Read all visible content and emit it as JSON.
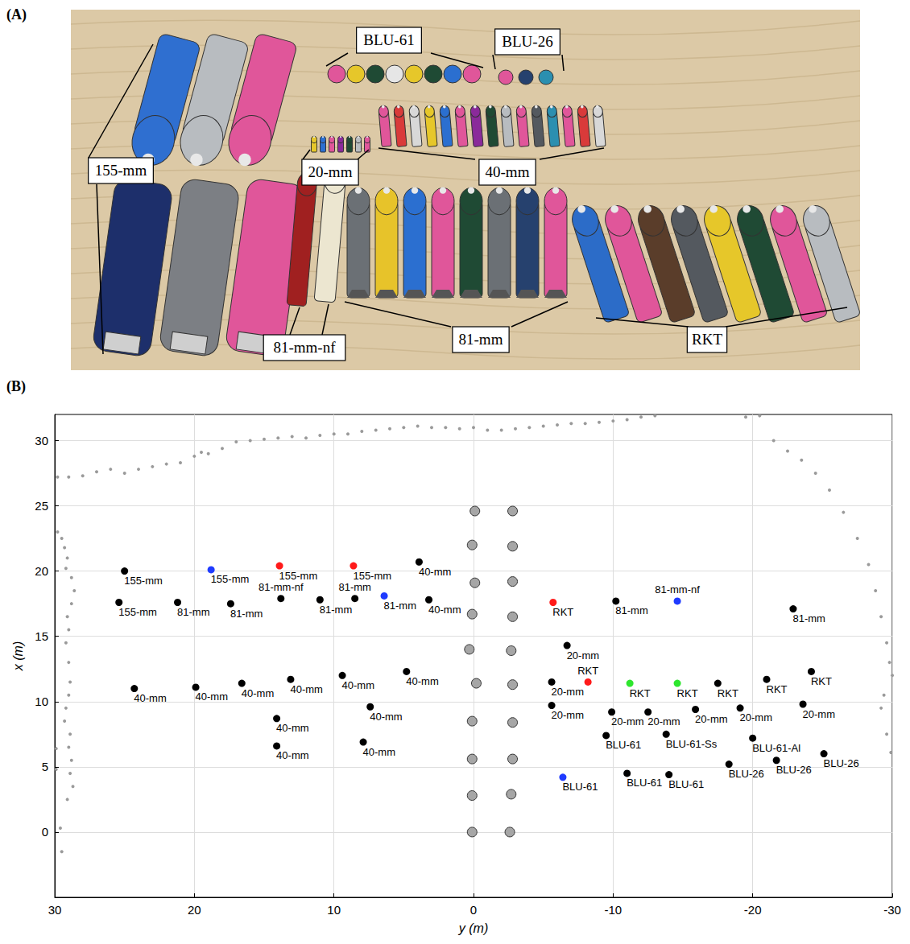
{
  "photo": {
    "panel_label": "(A)",
    "labels": [
      "155-mm",
      "BLU-61",
      "BLU-26",
      "20-mm",
      "40-mm",
      "81-mm-nf",
      "81-mm",
      "RKT"
    ]
  },
  "chart_data": {
    "type": "scatter",
    "panel_label": "(B)",
    "x_label": "y (m)",
    "y_label": "x (m)",
    "xlim": [
      30,
      -30
    ],
    "xticks": [
      30,
      20,
      10,
      0,
      -10,
      -20,
      -30
    ],
    "ylim": [
      -5,
      32
    ],
    "yticks": [
      0,
      5,
      10,
      15,
      20,
      25,
      30
    ],
    "grid": true,
    "series": [
      {
        "color": "#000000",
        "marker": "circle",
        "points": [
          {
            "x": 25,
            "y": 20,
            "label": "155-mm"
          },
          {
            "x": 3.9,
            "y": 20.7,
            "label": "40-mm"
          },
          {
            "x": 25.4,
            "y": 17.6,
            "label": "155-mm"
          },
          {
            "x": 21.2,
            "y": 17.6,
            "label": "81-mm"
          },
          {
            "x": 17.4,
            "y": 17.5,
            "label": "81-mm"
          },
          {
            "x": 13.8,
            "y": 17.9,
            "label": "81-mm-nf"
          },
          {
            "x": 11.0,
            "y": 17.8,
            "label": "81-mm"
          },
          {
            "x": 8.5,
            "y": 17.9,
            "label": "81-mm"
          },
          {
            "x": 3.2,
            "y": 17.8,
            "label": "40-mm"
          },
          {
            "x": -10.2,
            "y": 17.7,
            "label": "81-mm"
          },
          {
            "x": -22.9,
            "y": 17.1,
            "label": "81-mm"
          },
          {
            "x": -6.7,
            "y": 14.3,
            "label": "20-mm"
          },
          {
            "x": 24.3,
            "y": 11.0,
            "label": "40-mm"
          },
          {
            "x": 19.9,
            "y": 11.1,
            "label": "40-mm"
          },
          {
            "x": 16.6,
            "y": 11.4,
            "label": "40-mm"
          },
          {
            "x": 13.1,
            "y": 11.7,
            "label": "40-mm"
          },
          {
            "x": 9.4,
            "y": 12.0,
            "label": "40-mm"
          },
          {
            "x": 4.8,
            "y": 12.3,
            "label": "40-mm"
          },
          {
            "x": 14.1,
            "y": 8.7,
            "label": "40-mm"
          },
          {
            "x": 7.4,
            "y": 9.6,
            "label": "40-mm"
          },
          {
            "x": 14.1,
            "y": 6.6,
            "label": "40-mm"
          },
          {
            "x": 7.9,
            "y": 6.9,
            "label": "40-mm"
          },
          {
            "x": -5.6,
            "y": 11.5,
            "label": "20-mm"
          },
          {
            "x": -17.5,
            "y": 11.4,
            "label": "RKT"
          },
          {
            "x": -21.0,
            "y": 11.7,
            "label": "RKT"
          },
          {
            "x": -24.2,
            "y": 12.3,
            "label": "RKT"
          },
          {
            "x": -5.6,
            "y": 9.7,
            "label": "20-mm"
          },
          {
            "x": -9.9,
            "y": 9.2,
            "label": "20-mm"
          },
          {
            "x": -12.5,
            "y": 9.2,
            "label": "20-mm"
          },
          {
            "x": -15.9,
            "y": 9.4,
            "label": "20-mm"
          },
          {
            "x": -19.1,
            "y": 9.5,
            "label": "20-mm"
          },
          {
            "x": -23.6,
            "y": 9.8,
            "label": "20-mm"
          },
          {
            "x": -9.5,
            "y": 7.4,
            "label": "BLU-61"
          },
          {
            "x": -13.8,
            "y": 7.5,
            "label": "BLU-61-Ss"
          },
          {
            "x": -20.0,
            "y": 7.2,
            "label": "BLU-61-Al"
          },
          {
            "x": -18.3,
            "y": 5.2,
            "label": "BLU-26"
          },
          {
            "x": -21.7,
            "y": 5.5,
            "label": "BLU-26"
          },
          {
            "x": -25.1,
            "y": 6.0,
            "label": "BLU-26"
          },
          {
            "x": -11.0,
            "y": 4.5,
            "label": "BLU-61"
          },
          {
            "x": -14.0,
            "y": 4.4,
            "label": "BLU-61"
          }
        ]
      },
      {
        "color": "#1f3bff",
        "marker": "circle",
        "points": [
          {
            "x": 18.8,
            "y": 20.1,
            "label": "155-mm"
          },
          {
            "x": 6.4,
            "y": 18.1,
            "label": "81-mm"
          },
          {
            "x": -14.6,
            "y": 17.7,
            "label": "81-mm-nf"
          },
          {
            "x": -6.4,
            "y": 4.2,
            "label": "BLU-61"
          }
        ]
      },
      {
        "color": "#ff1a1a",
        "marker": "circle",
        "points": [
          {
            "x": 13.9,
            "y": 20.4,
            "label": "155-mm"
          },
          {
            "x": 8.6,
            "y": 20.4,
            "label": "155-mm"
          },
          {
            "x": -5.7,
            "y": 17.6,
            "label": "RKT"
          },
          {
            "x": -8.2,
            "y": 11.5,
            "label": "RKT"
          }
        ]
      },
      {
        "color": "#2ee62e",
        "marker": "circle",
        "points": [
          {
            "x": -11.2,
            "y": 11.4,
            "label": "RKT"
          },
          {
            "x": -14.6,
            "y": 11.4,
            "label": "RKT"
          }
        ]
      },
      {
        "color": "#a6a6a6",
        "marker": "circle-outline",
        "points": [
          {
            "x": 0.1,
            "y": 0
          },
          {
            "x": 0.1,
            "y": 2.8
          },
          {
            "x": 0.1,
            "y": 5.6
          },
          {
            "x": 0.1,
            "y": 8.5
          },
          {
            "x": -0.2,
            "y": 11.4
          },
          {
            "x": 0.3,
            "y": 14.0
          },
          {
            "x": 0.1,
            "y": 16.7
          },
          {
            "x": -0.1,
            "y": 19.1
          },
          {
            "x": 0.1,
            "y": 22.0
          },
          {
            "x": -0.1,
            "y": 24.6
          },
          {
            "x": -2.6,
            "y": 0
          },
          {
            "x": -2.7,
            "y": 2.9
          },
          {
            "x": -2.8,
            "y": 5.6
          },
          {
            "x": -2.8,
            "y": 8.4
          },
          {
            "x": -2.8,
            "y": 11.3
          },
          {
            "x": -2.7,
            "y": 13.9
          },
          {
            "x": -2.8,
            "y": 16.5
          },
          {
            "x": -2.8,
            "y": 19.2
          },
          {
            "x": -2.8,
            "y": 21.9
          },
          {
            "x": -2.8,
            "y": 24.6
          }
        ]
      },
      {
        "color": "#9a9a9a",
        "marker": "dot",
        "points": [
          {
            "x": 29.8,
            "y": 27.2
          },
          {
            "x": 29,
            "y": 27.2
          },
          {
            "x": 28,
            "y": 27.3
          },
          {
            "x": 27,
            "y": 27.6
          },
          {
            "x": 26,
            "y": 27.8
          },
          {
            "x": 25,
            "y": 27.5
          },
          {
            "x": 24,
            "y": 27.8
          },
          {
            "x": 23,
            "y": 28.0
          },
          {
            "x": 22,
            "y": 28.2
          },
          {
            "x": 21,
            "y": 28.3
          },
          {
            "x": 20,
            "y": 28.8
          },
          {
            "x": 19.5,
            "y": 29.1
          },
          {
            "x": 19,
            "y": 29.0
          },
          {
            "x": 18,
            "y": 29.4
          },
          {
            "x": 17,
            "y": 29.9
          },
          {
            "x": 16,
            "y": 30.0
          },
          {
            "x": 15,
            "y": 30.1
          },
          {
            "x": 14,
            "y": 30.2
          },
          {
            "x": 13,
            "y": 30.3
          },
          {
            "x": 12,
            "y": 30.2
          },
          {
            "x": 11,
            "y": 30.4
          },
          {
            "x": 10,
            "y": 30.5
          },
          {
            "x": 9,
            "y": 30.5
          },
          {
            "x": 8,
            "y": 30.7
          },
          {
            "x": 7,
            "y": 30.8
          },
          {
            "x": 6,
            "y": 30.9
          },
          {
            "x": 5,
            "y": 31.0
          },
          {
            "x": 4,
            "y": 31.1
          },
          {
            "x": 3,
            "y": 31.0
          },
          {
            "x": 2,
            "y": 31.0
          },
          {
            "x": 1,
            "y": 30.9
          },
          {
            "x": 0,
            "y": 31.0
          },
          {
            "x": -1,
            "y": 30.8
          },
          {
            "x": -2,
            "y": 30.8
          },
          {
            "x": -3,
            "y": 30.9
          },
          {
            "x": -4,
            "y": 31.0
          },
          {
            "x": -5,
            "y": 31.1
          },
          {
            "x": -6,
            "y": 31.2
          },
          {
            "x": -7,
            "y": 31.3
          },
          {
            "x": -8,
            "y": 31.3
          },
          {
            "x": -9,
            "y": 31.4
          },
          {
            "x": -10,
            "y": 31.5
          },
          {
            "x": -11,
            "y": 31.6
          },
          {
            "x": -12,
            "y": 31.8
          },
          {
            "x": -13,
            "y": 31.9
          },
          {
            "x": -19.5,
            "y": 31.8
          },
          {
            "x": -20.5,
            "y": 31.9
          },
          {
            "x": -21.5,
            "y": 30.0
          },
          {
            "x": -22.5,
            "y": 29.2
          },
          {
            "x": -23.5,
            "y": 28.5
          },
          {
            "x": -24.5,
            "y": 27.5
          },
          {
            "x": -25.5,
            "y": 26.2
          },
          {
            "x": -26.5,
            "y": 24.5
          },
          {
            "x": -27.5,
            "y": 22.5
          },
          {
            "x": -28.3,
            "y": 20.5
          },
          {
            "x": -28.8,
            "y": 18.5
          },
          {
            "x": -29.2,
            "y": 16.5
          },
          {
            "x": -29.6,
            "y": 14.5
          },
          {
            "x": -29.8,
            "y": 13.0
          },
          {
            "x": -30,
            "y": 12.0
          },
          {
            "x": -29.4,
            "y": 10.5
          },
          {
            "x": -29.2,
            "y": 9.5
          },
          {
            "x": -29.6,
            "y": 7.5
          },
          {
            "x": -29.9,
            "y": 6.1
          },
          {
            "x": 29.8,
            "y": 23.0
          },
          {
            "x": 29.5,
            "y": 22.5
          },
          {
            "x": 29.3,
            "y": 21.8
          },
          {
            "x": 29.1,
            "y": 21.0
          },
          {
            "x": 29.2,
            "y": 20.2
          },
          {
            "x": 28.8,
            "y": 19.5
          },
          {
            "x": 28.6,
            "y": 18.5
          },
          {
            "x": 28.8,
            "y": 17.5
          },
          {
            "x": 29.1,
            "y": 16.5
          },
          {
            "x": 29.0,
            "y": 15.5
          },
          {
            "x": 29.2,
            "y": 14.5
          },
          {
            "x": 29.0,
            "y": 13.0
          },
          {
            "x": 28.9,
            "y": 11.5
          },
          {
            "x": 29.0,
            "y": 10.5
          },
          {
            "x": 29.2,
            "y": 9.5
          },
          {
            "x": 29.3,
            "y": 8.5
          },
          {
            "x": 28.9,
            "y": 7.5
          },
          {
            "x": 29.0,
            "y": 6.5
          },
          {
            "x": 28.8,
            "y": 5.5
          },
          {
            "x": 28.9,
            "y": 4.5
          },
          {
            "x": 28.7,
            "y": 3.5
          },
          {
            "x": 29.1,
            "y": 2.5
          },
          {
            "x": 29.6,
            "y": 0.3
          },
          {
            "x": 29.5,
            "y": -1.5
          },
          {
            "x": 29.9,
            "y": 4.8
          },
          {
            "x": 29.9,
            "y": 6.4
          }
        ]
      }
    ]
  }
}
